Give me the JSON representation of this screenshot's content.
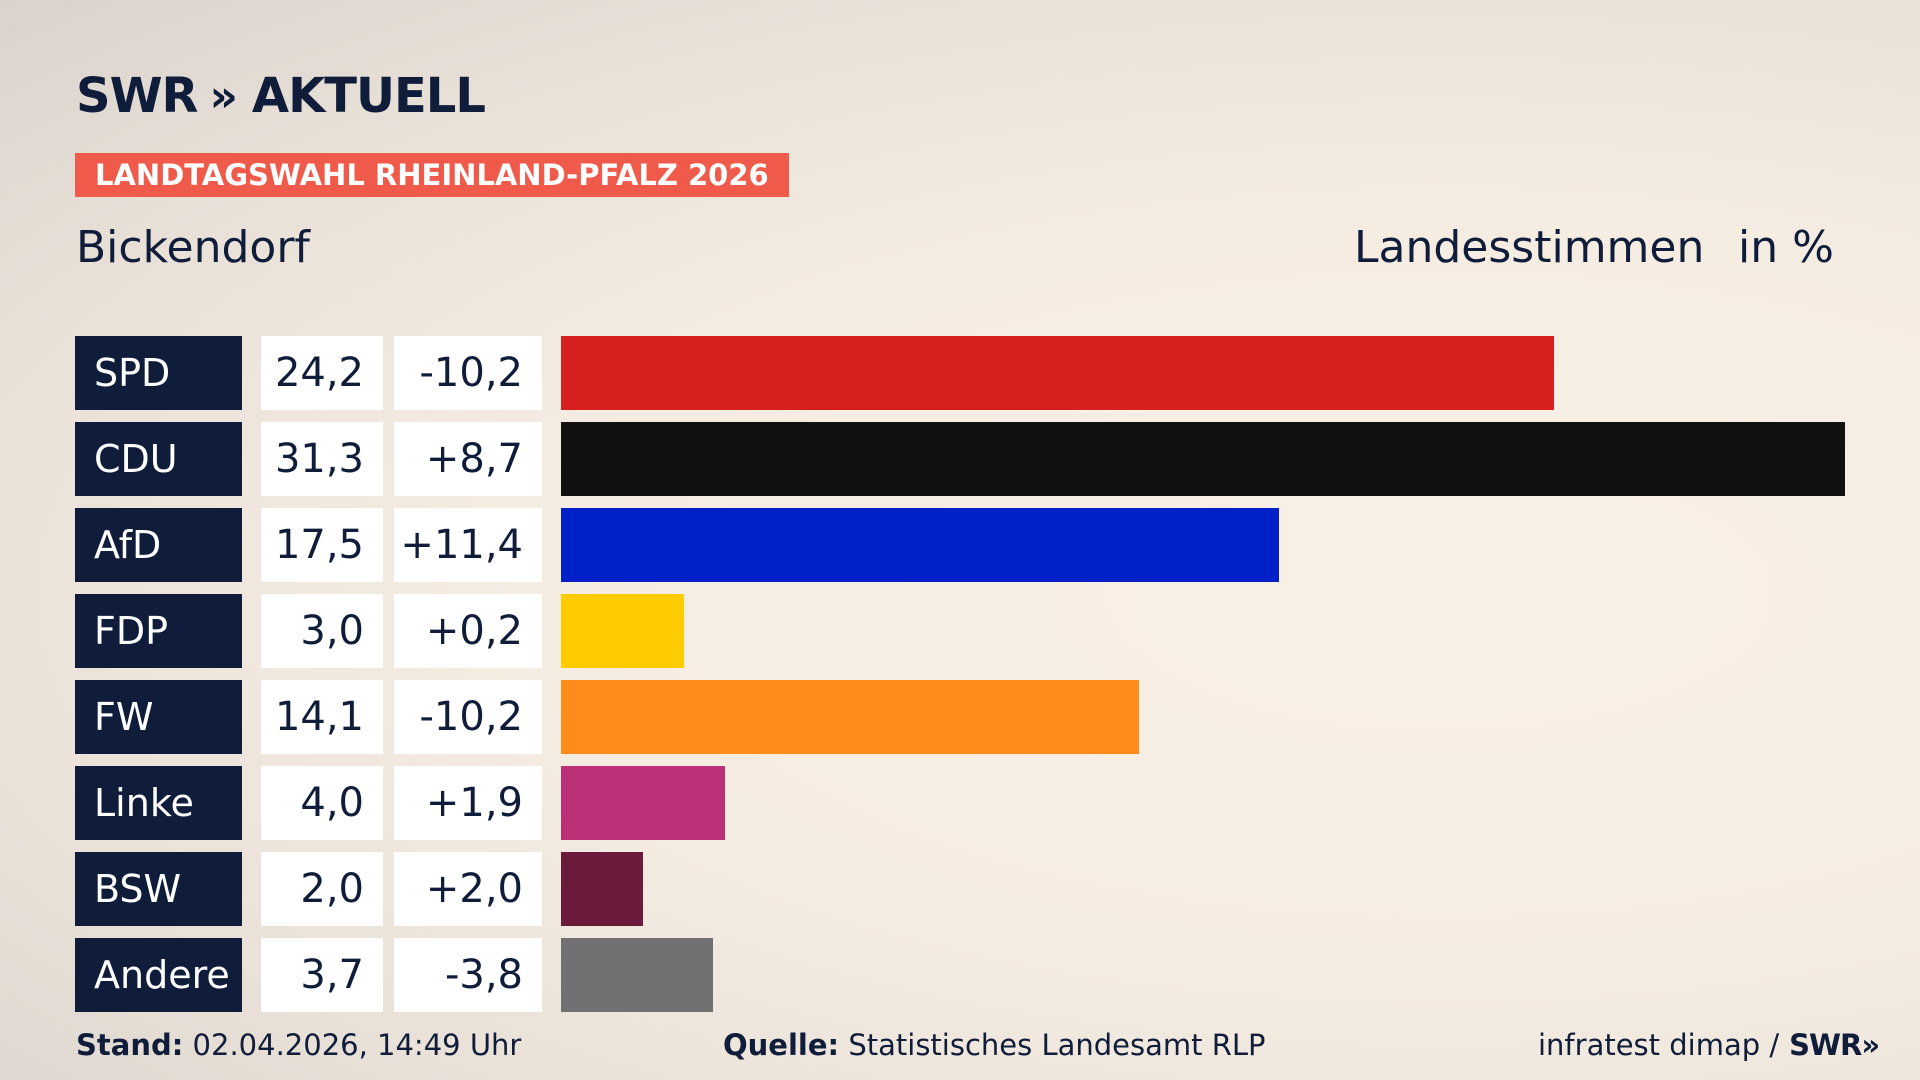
{
  "brand": {
    "swr": "SWR",
    "chevrons": "»",
    "aktuell": "AKTUELL"
  },
  "banner": "LANDTAGSWAHL RHEINLAND-PFALZ 2026",
  "place": "Bickendorf",
  "metric": "Landesstimmen",
  "unit": "in %",
  "footer": {
    "stand_label": "Stand:",
    "stand_value": "02.04.2026, 14:49 Uhr",
    "quelle_label": "Quelle:",
    "quelle_value": "Statistisches Landesamt RLP",
    "credit": "infratest dimap /",
    "credit_brand": "SWR",
    "credit_chevrons": "»"
  },
  "colors": {
    "SPD": "#d71f1f",
    "CDU": "#111111",
    "AfD": "#0220c8",
    "FDP": "#ffcc00",
    "FW": "#ff8c1a",
    "Linke": "#bb3077",
    "BSW": "#6b1a3c",
    "Andere": "#717174"
  },
  "chart_data": {
    "type": "bar",
    "orientation": "horizontal",
    "categories": [
      "SPD",
      "CDU",
      "AfD",
      "FDP",
      "FW",
      "Linke",
      "BSW",
      "Andere"
    ],
    "values": [
      24.2,
      31.3,
      17.5,
      3.0,
      14.1,
      4.0,
      2.0,
      3.7
    ],
    "value_labels": [
      "24,2",
      "31,3",
      "17,5",
      "3,0",
      "14,1",
      "4,0",
      "2,0",
      "3,7"
    ],
    "diff_labels": [
      "-10,2",
      "+8,7",
      "+11,4",
      "+0,2",
      "-10,2",
      "+1,9",
      "+2,0",
      "-3,8"
    ],
    "xlim": [
      0,
      31.3
    ],
    "grid": false,
    "legend": "none"
  }
}
